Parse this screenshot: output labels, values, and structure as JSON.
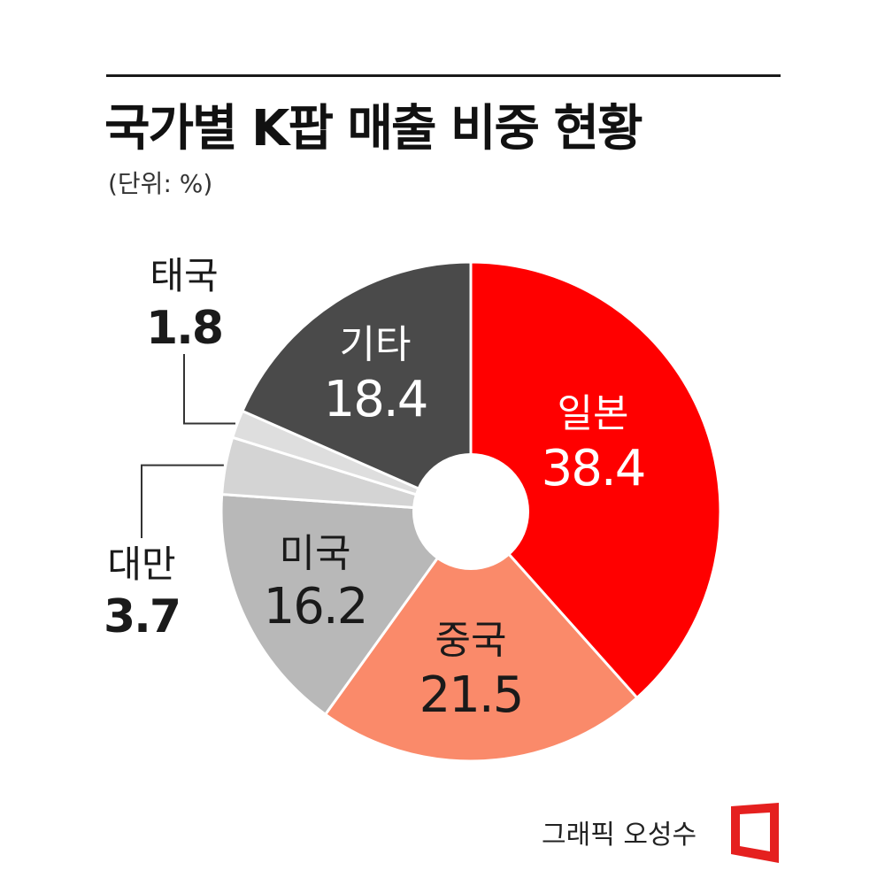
{
  "header": {
    "title": "국가별 K팝 매출 비중 현황",
    "unit": "(단위: %)"
  },
  "credit": "그래픽 오성수",
  "colors": {
    "japan": "#ff0000",
    "china": "#fa8a6a",
    "usa": "#b8b8b8",
    "taiwan": "#d4d4d4",
    "thailand": "#dedede",
    "other": "#4a4a4a",
    "logo": "#e5201f"
  },
  "chart_data": {
    "type": "pie",
    "title": "국가별 K팝 매출 비중 현황",
    "unit": "%",
    "categories": [
      "일본",
      "중국",
      "미국",
      "대만",
      "태국",
      "기타"
    ],
    "values": [
      38.4,
      21.5,
      16.2,
      3.7,
      1.8,
      18.4
    ],
    "labels": {
      "japan": "일본",
      "china": "중국",
      "usa": "미국",
      "taiwan": "대만",
      "thailand": "태국",
      "other": "기타"
    },
    "value_labels": {
      "japan": "38.4",
      "china": "21.5",
      "usa": "16.2",
      "taiwan": "3.7",
      "thailand": "1.8",
      "other": "18.4"
    },
    "donut_hole": true,
    "start": "top",
    "direction": "clockwise"
  }
}
